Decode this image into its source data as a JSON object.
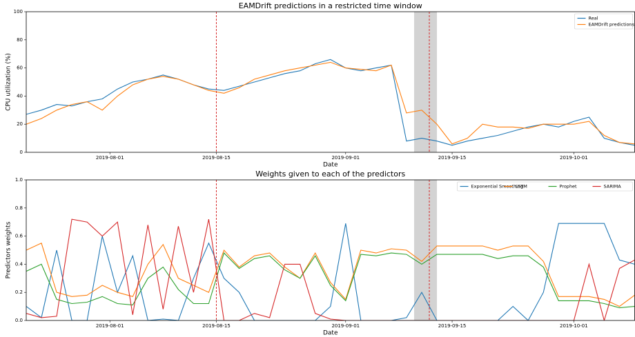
{
  "chart_data": [
    {
      "type": "line",
      "title": "EAMDrift predictions in a restricted time window",
      "xlabel": "Date",
      "ylabel": "CPU utilization (%)",
      "x": [
        "2019-07-21",
        "2019-07-23",
        "2019-07-25",
        "2019-07-27",
        "2019-07-29",
        "2019-07-31",
        "2019-08-02",
        "2019-08-04",
        "2019-08-06",
        "2019-08-08",
        "2019-08-10",
        "2019-08-12",
        "2019-08-14",
        "2019-08-16",
        "2019-08-18",
        "2019-08-20",
        "2019-08-22",
        "2019-08-24",
        "2019-08-26",
        "2019-08-28",
        "2019-08-30",
        "2019-09-01",
        "2019-09-03",
        "2019-09-05",
        "2019-09-07",
        "2019-09-09",
        "2019-09-11",
        "2019-09-13",
        "2019-09-15",
        "2019-09-17",
        "2019-09-19",
        "2019-09-21",
        "2019-09-23",
        "2019-09-25",
        "2019-09-27",
        "2019-09-29",
        "2019-10-01",
        "2019-10-03",
        "2019-10-05",
        "2019-10-07",
        "2019-10-09"
      ],
      "series": [
        {
          "name": "Real",
          "color": "#1f77b4",
          "values": [
            27,
            30,
            34,
            33,
            36,
            38,
            45,
            50,
            52,
            55,
            52,
            48,
            45,
            44,
            47,
            50,
            53,
            56,
            58,
            63,
            66,
            60,
            58,
            60,
            62,
            8,
            10,
            8,
            5,
            8,
            10,
            12,
            15,
            18,
            20,
            18,
            22,
            25,
            10,
            7,
            5
          ]
        },
        {
          "name": "EAMDrift predictions",
          "color": "#ff7f0e",
          "values": [
            20,
            24,
            30,
            34,
            36,
            30,
            40,
            48,
            52,
            54,
            52,
            48,
            44,
            42,
            46,
            52,
            55,
            58,
            60,
            62,
            64,
            60,
            59,
            58,
            62,
            28,
            30,
            20,
            6,
            10,
            20,
            18,
            18,
            17,
            20,
            20,
            20,
            22,
            12,
            7,
            6
          ]
        }
      ],
      "xlim": [
        "2019-07-21",
        "2019-10-09"
      ],
      "xticks": [
        "2019-08-01",
        "2019-08-15",
        "2019-09-01",
        "2019-09-15",
        "2019-10-01"
      ],
      "ylim": [
        0,
        100
      ],
      "yticks": [
        0,
        20,
        40,
        60,
        80,
        100
      ],
      "vlines": [
        "2019-08-15",
        "2019-09-12"
      ],
      "vline_color": "#d62728",
      "shade": [
        "2019-09-10",
        "2019-09-13"
      ],
      "shade_color": "#d3d3d3",
      "legend": "upper right",
      "legend_columns": 1
    },
    {
      "type": "line",
      "title": "Weights given to each of the predictors",
      "xlabel": "Date",
      "ylabel": "Predictors weights",
      "x": [
        "2019-07-21",
        "2019-07-23",
        "2019-07-25",
        "2019-07-27",
        "2019-07-29",
        "2019-07-31",
        "2019-08-02",
        "2019-08-04",
        "2019-08-06",
        "2019-08-08",
        "2019-08-10",
        "2019-08-12",
        "2019-08-14",
        "2019-08-16",
        "2019-08-18",
        "2019-08-20",
        "2019-08-22",
        "2019-08-24",
        "2019-08-26",
        "2019-08-28",
        "2019-08-30",
        "2019-09-01",
        "2019-09-03",
        "2019-09-05",
        "2019-09-07",
        "2019-09-09",
        "2019-09-11",
        "2019-09-13",
        "2019-09-15",
        "2019-09-17",
        "2019-09-19",
        "2019-09-21",
        "2019-09-23",
        "2019-09-25",
        "2019-09-27",
        "2019-09-29",
        "2019-10-01",
        "2019-10-03",
        "2019-10-05",
        "2019-10-07",
        "2019-10-09"
      ],
      "series": [
        {
          "name": "Exponential Smoothing",
          "color": "#1f77b4",
          "values": [
            0.1,
            0.02,
            0.5,
            0,
            0,
            0.6,
            0.2,
            0.46,
            0,
            0.01,
            0,
            0.3,
            0.55,
            0.3,
            0.2,
            0,
            0,
            0,
            0,
            0,
            0.1,
            0.69,
            0,
            0,
            0,
            0.02,
            0.2,
            0,
            0,
            0,
            0,
            0,
            0.1,
            0,
            0.2,
            0.69,
            0.69,
            0.69,
            0.69,
            0.43,
            0.4
          ]
        },
        {
          "name": "LSTM",
          "color": "#ff7f0e",
          "values": [
            0.5,
            0.55,
            0.2,
            0.17,
            0.18,
            0.25,
            0.2,
            0.17,
            0.4,
            0.54,
            0.3,
            0.25,
            0.2,
            0.5,
            0.38,
            0.46,
            0.48,
            0.38,
            0.3,
            0.48,
            0.27,
            0.15,
            0.5,
            0.48,
            0.51,
            0.5,
            0.42,
            0.53,
            0.53,
            0.53,
            0.53,
            0.5,
            0.53,
            0.53,
            0.42,
            0.17,
            0.17,
            0.17,
            0.15,
            0.1,
            0.18
          ]
        },
        {
          "name": "Prophet",
          "color": "#2ca02c",
          "values": [
            0.35,
            0.4,
            0.15,
            0.12,
            0.13,
            0.17,
            0.12,
            0.11,
            0.3,
            0.38,
            0.22,
            0.12,
            0.12,
            0.48,
            0.37,
            0.44,
            0.46,
            0.36,
            0.3,
            0.46,
            0.25,
            0.14,
            0.47,
            0.46,
            0.48,
            0.47,
            0.4,
            0.47,
            0.47,
            0.47,
            0.47,
            0.44,
            0.46,
            0.46,
            0.38,
            0.14,
            0.14,
            0.14,
            0.12,
            0.09,
            0.1
          ]
        },
        {
          "name": "SARIMA",
          "color": "#d62728",
          "values": [
            0.05,
            0.02,
            0.03,
            0.72,
            0.7,
            0.6,
            0.7,
            0.04,
            0.68,
            0.08,
            0.67,
            0.2,
            0.72,
            0,
            0,
            0.05,
            0.02,
            0.4,
            0.4,
            0.05,
            0.01,
            0,
            0,
            0,
            0,
            0,
            0,
            0,
            0,
            0,
            0,
            0,
            0,
            0,
            0,
            0,
            0,
            0.4,
            0,
            0.37,
            0.43
          ]
        }
      ],
      "xlim": [
        "2019-07-21",
        "2019-10-09"
      ],
      "xticks": [
        "2019-08-01",
        "2019-08-15",
        "2019-09-01",
        "2019-09-15",
        "2019-10-01"
      ],
      "ylim": [
        0,
        1
      ],
      "yticks": [
        {
          "value": 0,
          "label": "0.0"
        },
        {
          "value": 0.2,
          "label": "0.2"
        },
        {
          "value": 0.4,
          "label": "0.4"
        },
        {
          "value": 0.6,
          "label": "0.6"
        },
        {
          "value": 0.8,
          "label": "0.8"
        },
        {
          "value": 1,
          "label": "1.0"
        }
      ],
      "vlines": [
        "2019-08-15",
        "2019-09-12"
      ],
      "vline_color": "#d62728",
      "shade": [
        "2019-09-10",
        "2019-09-13"
      ],
      "shade_color": "#d3d3d3",
      "legend": "upper right",
      "legend_columns": 4
    }
  ]
}
